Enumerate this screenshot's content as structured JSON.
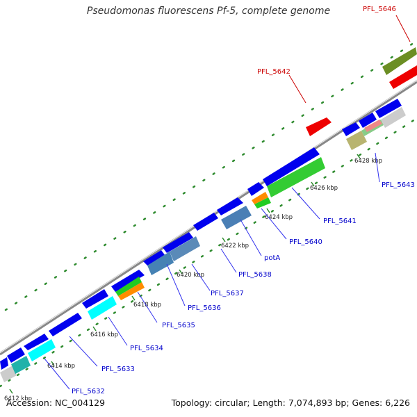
{
  "title": "Pseudomonas fluorescens Pf-5, complete genome",
  "footer": {
    "accession": "Accession: NC_004129",
    "summary": "Topology: circular; Length: 7,074,893 bp; Genes: 6,226"
  },
  "colors": {
    "backbone": "#888888",
    "cds": "#0000ee",
    "highlight": "#ee0000",
    "tick_dot": "#2e8b2e",
    "label_blue": "#0000cc",
    "label_red": "#cc0000"
  },
  "tick_labels": [
    "6412 kbp",
    "6414 kbp",
    "6416 kbp",
    "6418 kbp",
    "6420 kbp",
    "6422 kbp",
    "6424 kbp",
    "6426 kbp",
    "6428 kbp"
  ],
  "gene_labels": [
    {
      "text": "PFL_5632",
      "color": "blue"
    },
    {
      "text": "PFL_5633",
      "color": "blue"
    },
    {
      "text": "PFL_5634",
      "color": "blue"
    },
    {
      "text": "PFL_5635",
      "color": "blue"
    },
    {
      "text": "PFL_5636",
      "color": "blue"
    },
    {
      "text": "PFL_5637",
      "color": "blue"
    },
    {
      "text": "PFL_5638",
      "color": "blue"
    },
    {
      "text": "potA",
      "color": "blue"
    },
    {
      "text": "PFL_5640",
      "color": "blue"
    },
    {
      "text": "PFL_5641",
      "color": "blue"
    },
    {
      "text": "PFL_5643",
      "color": "blue"
    },
    {
      "text": "PFL_5642",
      "color": "red"
    },
    {
      "text": "PFL_5646",
      "color": "red"
    }
  ]
}
